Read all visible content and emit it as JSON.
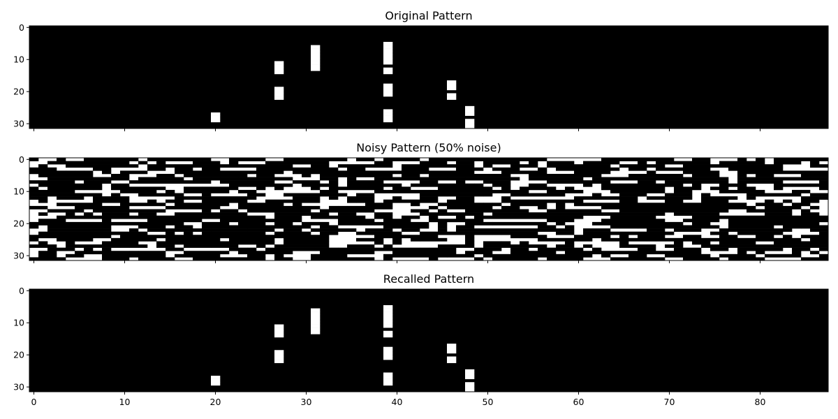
{
  "chart_data": [
    {
      "type": "heatmap",
      "title": "Original Pattern",
      "xlabel": "",
      "ylabel": "",
      "grid": false,
      "rows": 32,
      "cols": 88,
      "colormap": {
        "0": "#000000",
        "1": "#ffffff"
      },
      "xticks": [
        0,
        10,
        20,
        30,
        40,
        50,
        60,
        70,
        80
      ],
      "yticks": [
        0,
        10,
        20,
        30
      ],
      "on_cells": [
        {
          "col": 20,
          "rows": [
            27,
            28,
            29
          ]
        },
        {
          "col": 27,
          "rows": [
            11,
            12,
            13,
            14,
            19,
            20,
            21,
            22
          ]
        },
        {
          "col": 31,
          "rows": [
            6,
            7,
            8,
            9,
            10,
            11,
            12,
            13
          ]
        },
        {
          "col": 39,
          "rows": [
            5,
            6,
            7,
            8,
            9,
            10,
            11,
            13,
            14,
            18,
            19,
            20,
            21,
            26,
            27,
            28,
            29
          ]
        },
        {
          "col": 46,
          "rows": [
            17,
            18,
            19,
            21,
            22
          ]
        },
        {
          "col": 48,
          "rows": [
            25,
            26,
            27,
            29,
            30,
            31
          ]
        }
      ]
    },
    {
      "type": "heatmap",
      "title": "Noisy Pattern (50% noise)",
      "xlabel": "",
      "ylabel": "",
      "grid": false,
      "rows": 32,
      "cols": 88,
      "colormap": {
        "0": "#000000",
        "1": "#ffffff"
      },
      "xticks": [
        0,
        10,
        20,
        30,
        40,
        50,
        60,
        70,
        80
      ],
      "yticks": [
        0,
        10,
        20,
        30
      ],
      "noise_fraction": 0.5
    },
    {
      "type": "heatmap",
      "title": "Recalled Pattern",
      "xlabel": "",
      "ylabel": "",
      "grid": false,
      "rows": 32,
      "cols": 88,
      "colormap": {
        "0": "#000000",
        "1": "#ffffff"
      },
      "xticks": [
        0,
        10,
        20,
        30,
        40,
        50,
        60,
        70,
        80
      ],
      "yticks": [
        0,
        10,
        20,
        30
      ],
      "on_cells": [
        {
          "col": 20,
          "rows": [
            27,
            28,
            29
          ]
        },
        {
          "col": 27,
          "rows": [
            11,
            12,
            13,
            14,
            19,
            20,
            21,
            22
          ]
        },
        {
          "col": 31,
          "rows": [
            6,
            7,
            8,
            9,
            10,
            11,
            12,
            13
          ]
        },
        {
          "col": 39,
          "rows": [
            5,
            6,
            7,
            8,
            9,
            10,
            11,
            13,
            14,
            18,
            19,
            20,
            21,
            26,
            27,
            28,
            29
          ]
        },
        {
          "col": 46,
          "rows": [
            17,
            18,
            19,
            21,
            22
          ]
        },
        {
          "col": 48,
          "rows": [
            25,
            26,
            27,
            29,
            30,
            31
          ]
        }
      ]
    }
  ]
}
